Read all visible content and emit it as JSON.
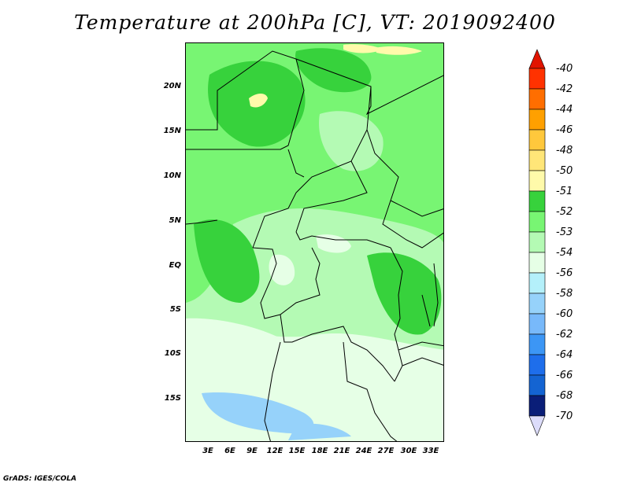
{
  "title": "Temperature at 200hPa [C], VT: 2019092400",
  "credit": "GrADS: IGES/COLA",
  "lat_labels": [
    "20N",
    "15N",
    "10N",
    "5N",
    "EQ",
    "5S",
    "10S",
    "15S"
  ],
  "lon_labels": [
    "3E",
    "6E",
    "9E",
    "12E",
    "15E",
    "18E",
    "21E",
    "24E",
    "27E",
    "30E",
    "33E"
  ],
  "colorbar": {
    "labels": [
      "-40",
      "-42",
      "-44",
      "-46",
      "-48",
      "-50",
      "-51",
      "-52",
      "-53",
      "-54",
      "-56",
      "-58",
      "-60",
      "-62",
      "-64",
      "-66",
      "-68",
      "-70"
    ],
    "colors": [
      "#b4f0fa",
      "#96d2fa",
      "#78b9fa",
      "#3c96f5",
      "#1e6eeb",
      "#1464d2",
      "#0f4bb4",
      "#0a3297",
      "#0a1e78"
    ],
    "warm_colors": [
      "#e11400",
      "#ff3200",
      "#ff6e00",
      "#ffa000",
      "#ffc83c",
      "#ffe678",
      "#fffaaa",
      "#37d23c",
      "#78f573",
      "#b4fab4",
      "#e6ffe6"
    ],
    "top_arrow_color": "#e11400",
    "bottom_arrow_color": "#dcdcfa"
  }
}
